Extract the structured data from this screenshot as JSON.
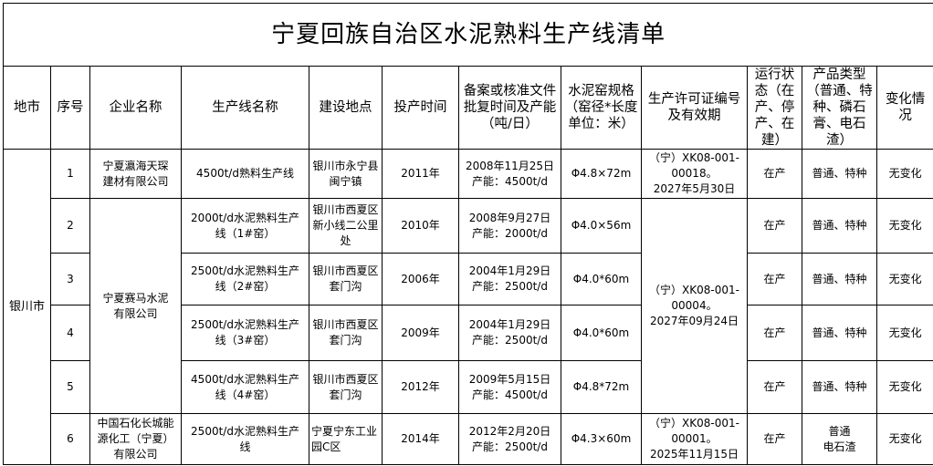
{
  "title": "宁夏回族自治区水泥熟料生产线清单",
  "headers": [
    "地市",
    "序号",
    "企业名称",
    "生产线名称",
    "建设地点",
    "投产时间",
    "备案或核准文件批复时间及产能\n（吨/日）",
    "水泥窑规格\n（窑径*长度单位：米）",
    "生产许可证编号及有效期",
    "运行状态（在产、停产、在建）",
    "产品类型（普通、特种、磷石膏、电石渣）",
    "变化情况"
  ],
  "city": "银川市",
  "companies": [
    "宁夏瀛海天琛\n建材有限公司",
    "宁夏赛马水泥\n有限公司",
    "中国石化长城能\n源化工（宁夏）\n有限公司"
  ],
  "licenses": [
    "（宁）XK08-001-\n00018。\n2027年5月30日",
    "（宁）XK08-001-\n00004。\n2027年09月24日",
    "（宁）XK08-001-\n00001。\n2025年11月15日"
  ],
  "rows": [
    {
      "no": "1",
      "line": "4500t/d熟料生产线",
      "site": "银川市永宁县\n闽宁镇",
      "year": "2011年",
      "approval": "2008年11月25日\n产能：4500t/d",
      "kiln": "Φ4.8×72m",
      "status": "在产",
      "product": "普通、特种",
      "change": "无变化"
    },
    {
      "no": "2",
      "line": "2000t/d水泥熟料生产\n线（1#窑）",
      "site": "银川市西夏区\n新小线二公里\n处",
      "year": "2010年",
      "approval": "2008年9月27日\n产能：2000t/d",
      "kiln": "Φ4.0×56m",
      "status": "在产",
      "product": "普通、特种",
      "change": "无变化"
    },
    {
      "no": "3",
      "line": "2500t/d水泥熟料生产\n线（2#窑）",
      "site": "银川市西夏区\n套门沟",
      "year": "2006年",
      "approval": "2004年1月29日\n产能：2500t/d",
      "kiln": "Φ4.0*60m",
      "status": "在产",
      "product": "普通、特种",
      "change": "无变化"
    },
    {
      "no": "4",
      "line": "2500t/d水泥熟料生产\n线（3#窑）",
      "site": "银川市西夏区\n套门沟",
      "year": "2009年",
      "approval": "2004年1月29日\n产能：2500t/d",
      "kiln": "Φ4.0*60m",
      "status": "在产",
      "product": "普通、特种",
      "change": "无变化"
    },
    {
      "no": "5",
      "line": "4500t/d水泥熟料生产\n线（4#窑）",
      "site": "银川市西夏区\n套门沟",
      "year": "2012年",
      "approval": "2009年5月15日\n产能：4500t/d",
      "kiln": "Φ4.8*72m",
      "status": "在产",
      "product": "普通、特种",
      "change": "无变化"
    },
    {
      "no": "6",
      "line": "2500t/d水泥熟料生产\n线",
      "site": "宁夏宁东工业\n园C区",
      "year": "2014年",
      "approval": "2012年2月20日\n产能：2500t/d",
      "kiln": "Φ4.3×60m",
      "status": "在产",
      "product": "普通\n电石渣",
      "change": "无变化"
    }
  ]
}
